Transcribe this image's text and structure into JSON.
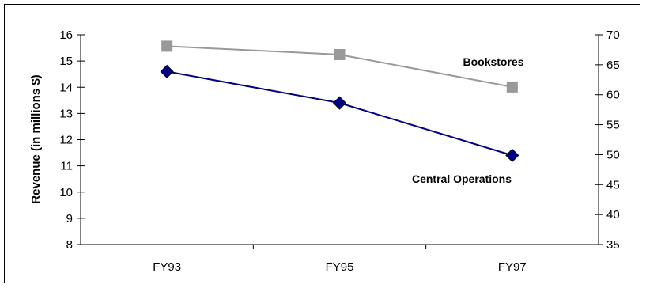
{
  "chart_data": {
    "type": "line",
    "title": "",
    "xlabel": "",
    "ylabel": "Revenue (in millions $)",
    "categories": [
      "FY93",
      "FY95",
      "FY97"
    ],
    "y_left": {
      "ylim": [
        8,
        16
      ],
      "ticks": [
        "8",
        "9",
        "10",
        "11",
        "12",
        "13",
        "14",
        "15",
        "16"
      ]
    },
    "y_right": {
      "ylim": [
        35,
        70
      ],
      "ticks": [
        "35",
        "40",
        "45",
        "50",
        "55",
        "60",
        "65",
        "70"
      ]
    },
    "grid": false,
    "legend": "none",
    "series": [
      {
        "name": "Bookstores",
        "axis": "right",
        "values": [
          68.1,
          66.7,
          61.3
        ],
        "color": "#999999",
        "marker": "square"
      },
      {
        "name": "Central Operations",
        "axis": "left",
        "values": [
          14.6,
          13.4,
          11.4
        ],
        "color": "#000080",
        "marker": "diamond"
      }
    ]
  }
}
